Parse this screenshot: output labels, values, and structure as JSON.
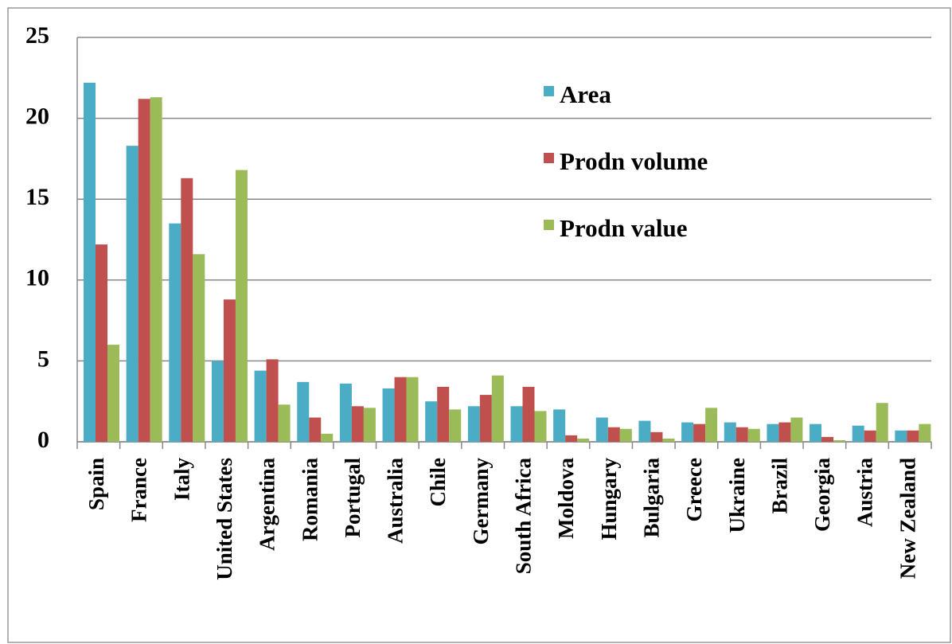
{
  "chart_data": {
    "type": "bar",
    "categories": [
      "Spain",
      "France",
      "Italy",
      "United States",
      "Argentina",
      "Romania",
      "Portugal",
      "Australia",
      "Chile",
      "Germany",
      "South Africa",
      "Moldova",
      "Hungary",
      "Bulgaria",
      "Greece",
      "Ukraine",
      "Brazil",
      "Georgia",
      "Austria",
      "New Zealand"
    ],
    "series": [
      {
        "name": "Area",
        "color": "#4bacc6",
        "values": [
          22.2,
          18.3,
          13.5,
          5.0,
          4.4,
          3.7,
          3.6,
          3.3,
          2.5,
          2.2,
          2.2,
          2.0,
          1.5,
          1.3,
          1.2,
          1.2,
          1.1,
          1.1,
          1.0,
          0.7
        ]
      },
      {
        "name": "Prodn volume",
        "color": "#c0504d",
        "values": [
          12.2,
          21.2,
          16.3,
          8.8,
          5.1,
          1.5,
          2.2,
          4.0,
          3.4,
          2.9,
          3.4,
          0.4,
          0.9,
          0.6,
          1.1,
          0.9,
          1.2,
          0.3,
          0.7,
          0.7
        ]
      },
      {
        "name": "Prodn value",
        "color": "#9bbb59",
        "values": [
          6.0,
          21.3,
          11.6,
          16.8,
          2.3,
          0.5,
          2.1,
          4.0,
          2.0,
          4.1,
          1.9,
          0.2,
          0.8,
          0.2,
          2.1,
          0.8,
          1.5,
          0.1,
          2.4,
          1.1
        ]
      }
    ],
    "ylim": [
      0,
      25
    ],
    "yticks": [
      0,
      5,
      10,
      15,
      20,
      25
    ],
    "grid": true
  }
}
